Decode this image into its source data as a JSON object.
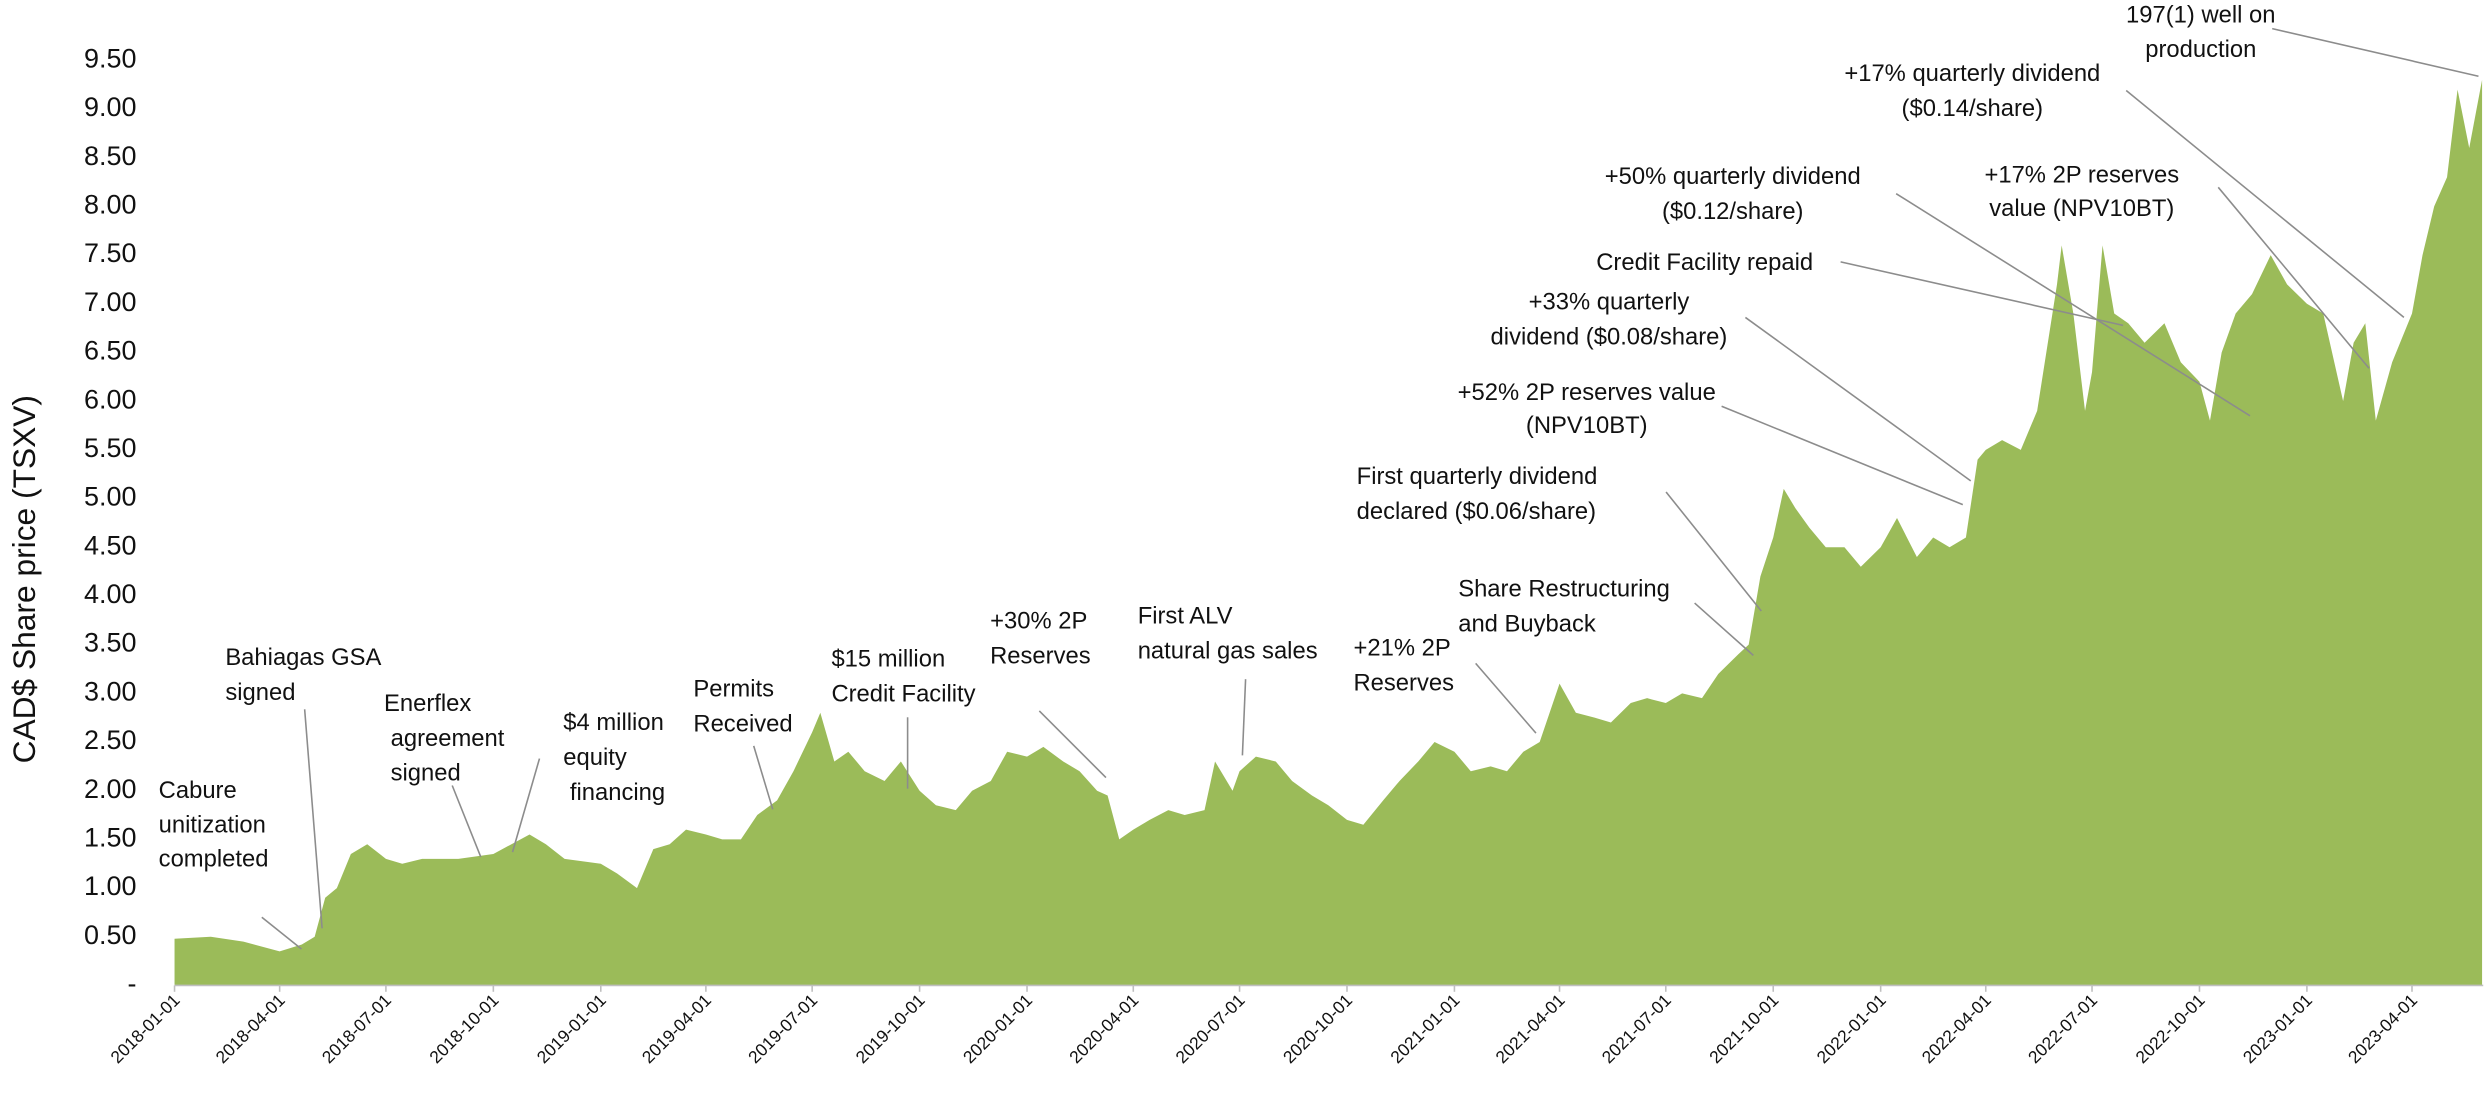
{
  "chart_data": {
    "type": "area",
    "y_label": "CAD$ Share price (TSXV)",
    "color": "#9bbb59",
    "xlim": [
      "2018-01-01",
      "2023-06-01"
    ],
    "xticks": [
      "2018-01-01",
      "2018-04-01",
      "2018-07-01",
      "2018-10-01",
      "2019-01-01",
      "2019-04-01",
      "2019-07-01",
      "2019-10-01",
      "2020-01-01",
      "2020-04-01",
      "2020-07-01",
      "2020-10-01",
      "2021-01-01",
      "2021-04-01",
      "2021-07-01",
      "2021-10-01",
      "2022-01-01",
      "2022-04-01",
      "2022-07-01",
      "2022-10-01",
      "2023-01-01",
      "2023-04-01"
    ],
    "ylim": [
      0,
      9.5
    ],
    "yticks": [
      {
        "value": 0,
        "label": "-"
      },
      {
        "value": 0.5,
        "label": "0.50"
      },
      {
        "value": 1,
        "label": "1.00"
      },
      {
        "value": 1.5,
        "label": "1.50"
      },
      {
        "value": 2,
        "label": "2.00"
      },
      {
        "value": 2.5,
        "label": "2.50"
      },
      {
        "value": 3,
        "label": "3.00"
      },
      {
        "value": 3.5,
        "label": "3.50"
      },
      {
        "value": 4,
        "label": "4.00"
      },
      {
        "value": 4.5,
        "label": "4.50"
      },
      {
        "value": 5,
        "label": "5.00"
      },
      {
        "value": 5.5,
        "label": "5.50"
      },
      {
        "value": 6,
        "label": "6.00"
      },
      {
        "value": 6.5,
        "label": "6.50"
      },
      {
        "value": 7,
        "label": "7.00"
      },
      {
        "value": 7.5,
        "label": "7.50"
      },
      {
        "value": 8,
        "label": "8.00"
      },
      {
        "value": 8.5,
        "label": "8.50"
      },
      {
        "value": 9,
        "label": "9.00"
      },
      {
        "value": 9.5,
        "label": "9.50"
      }
    ],
    "grid": false,
    "x": [
      "2018-01-01",
      "2018-02-01",
      "2018-03-01",
      "2018-04-01",
      "2018-04-20",
      "2018-05-01",
      "2018-05-10",
      "2018-05-20",
      "2018-06-01",
      "2018-06-15",
      "2018-07-01",
      "2018-07-15",
      "2018-08-01",
      "2018-09-01",
      "2018-10-01",
      "2018-11-01",
      "2018-11-15",
      "2018-12-01",
      "2019-01-01",
      "2019-01-15",
      "2019-02-01",
      "2019-02-15",
      "2019-03-01",
      "2019-03-15",
      "2019-04-01",
      "2019-04-15",
      "2019-05-01",
      "2019-05-15",
      "2019-06-01",
      "2019-06-15",
      "2019-07-01",
      "2019-07-08",
      "2019-07-20",
      "2019-08-01",
      "2019-08-15",
      "2019-09-01",
      "2019-09-15",
      "2019-10-01",
      "2019-10-15",
      "2019-11-01",
      "2019-11-15",
      "2019-12-01",
      "2019-12-15",
      "2020-01-01",
      "2020-01-15",
      "2020-02-01",
      "2020-02-15",
      "2020-03-01",
      "2020-03-10",
      "2020-03-20",
      "2020-04-01",
      "2020-04-15",
      "2020-05-01",
      "2020-05-15",
      "2020-06-01",
      "2020-06-10",
      "2020-06-25",
      "2020-07-01",
      "2020-07-15",
      "2020-08-01",
      "2020-08-15",
      "2020-09-01",
      "2020-09-15",
      "2020-10-01",
      "2020-10-15",
      "2020-11-01",
      "2020-11-15",
      "2020-12-01",
      "2020-12-15",
      "2021-01-01",
      "2021-01-15",
      "2021-02-01",
      "2021-02-15",
      "2021-03-01",
      "2021-03-15",
      "2021-04-01",
      "2021-04-15",
      "2021-05-01",
      "2021-05-15",
      "2021-06-01",
      "2021-06-15",
      "2021-07-01",
      "2021-07-15",
      "2021-08-01",
      "2021-08-15",
      "2021-09-01",
      "2021-09-10",
      "2021-09-20",
      "2021-10-01",
      "2021-10-10",
      "2021-10-20",
      "2021-11-01",
      "2021-11-15",
      "2021-12-01",
      "2021-12-15",
      "2022-01-01",
      "2022-01-15",
      "2022-02-01",
      "2022-02-15",
      "2022-03-01",
      "2022-03-15",
      "2022-03-25",
      "2022-04-01",
      "2022-04-15",
      "2022-05-01",
      "2022-05-15",
      "2022-06-01",
      "2022-06-05",
      "2022-06-15",
      "2022-06-25",
      "2022-07-01",
      "2022-07-10",
      "2022-07-20",
      "2022-08-01",
      "2022-08-15",
      "2022-09-01",
      "2022-09-15",
      "2022-10-01",
      "2022-10-10",
      "2022-10-20",
      "2022-11-01",
      "2022-11-15",
      "2022-12-01",
      "2022-12-15",
      "2023-01-01",
      "2023-01-15",
      "2023-02-01",
      "2023-02-10",
      "2023-02-20",
      "2023-03-01",
      "2023-03-15",
      "2023-04-01",
      "2023-04-10",
      "2023-04-20",
      "2023-05-01",
      "2023-05-10",
      "2023-05-20",
      "2023-05-31"
    ],
    "values": [
      0.48,
      0.5,
      0.45,
      0.35,
      0.42,
      0.5,
      0.9,
      1.0,
      1.35,
      1.45,
      1.3,
      1.25,
      1.3,
      1.3,
      1.35,
      1.55,
      1.45,
      1.3,
      1.25,
      1.15,
      1.0,
      1.4,
      1.45,
      1.6,
      1.55,
      1.5,
      1.5,
      1.75,
      1.9,
      2.2,
      2.6,
      2.8,
      2.3,
      2.4,
      2.2,
      2.1,
      2.3,
      2.0,
      1.85,
      1.8,
      2.0,
      2.1,
      2.4,
      2.35,
      2.45,
      2.3,
      2.2,
      2.0,
      1.95,
      1.5,
      1.6,
      1.7,
      1.8,
      1.75,
      1.8,
      2.3,
      2.0,
      2.2,
      2.35,
      2.3,
      2.1,
      1.95,
      1.85,
      1.7,
      1.65,
      1.9,
      2.1,
      2.3,
      2.5,
      2.4,
      2.2,
      2.25,
      2.2,
      2.4,
      2.5,
      3.1,
      2.8,
      2.75,
      2.7,
      2.9,
      2.95,
      2.9,
      3.0,
      2.95,
      3.2,
      3.4,
      3.5,
      4.2,
      4.6,
      5.1,
      4.9,
      4.7,
      4.5,
      4.5,
      4.3,
      4.5,
      4.8,
      4.4,
      4.6,
      4.5,
      4.6,
      5.4,
      5.5,
      5.6,
      5.5,
      5.9,
      7.2,
      7.6,
      6.9,
      5.9,
      6.3,
      7.6,
      6.9,
      6.8,
      6.6,
      6.8,
      6.4,
      6.2,
      5.8,
      6.5,
      6.9,
      7.1,
      7.5,
      7.2,
      7.0,
      6.9,
      6.0,
      6.6,
      6.8,
      5.8,
      6.4,
      6.9,
      7.5,
      8.0,
      8.3,
      9.2,
      8.6,
      9.3
    ],
    "annotations": [
      [
        "Cabure",
        "unitization",
        "completed"
      ],
      [
        "Bahiagas GSA",
        "signed"
      ],
      [
        "Enerflex",
        " agreement",
        " signed"
      ],
      [
        "$4 million",
        "equity",
        " financing"
      ],
      [
        "Permits",
        "Received"
      ],
      [
        "$15 million",
        "Credit Facility"
      ],
      [
        "+30% 2P",
        "Reserves"
      ],
      [
        "First ALV",
        "natural gas sales"
      ],
      [
        "+21% 2P",
        "Reserves"
      ],
      [
        "Share Restructuring",
        "and Buyback"
      ],
      [
        "First quarterly dividend",
        "declared ($0.06/share)"
      ],
      [
        "+52% 2P reserves value",
        "(NPV10BT)"
      ],
      [
        "+33% quarterly",
        "dividend ($0.08/share)"
      ],
      [
        "Credit Facility repaid"
      ],
      [
        "+50% quarterly dividend",
        "($0.12/share)"
      ],
      [
        "+17% quarterly dividend",
        "($0.14/share)"
      ],
      [
        "+17% 2P reserves",
        "value (NPV10BT)"
      ],
      [
        "197(1) well on",
        "production"
      ]
    ]
  }
}
